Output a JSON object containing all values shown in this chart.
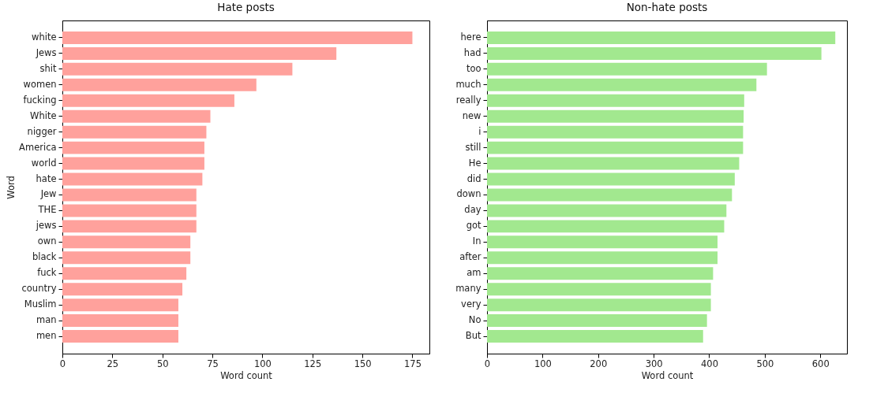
{
  "chart_data": [
    {
      "type": "bar",
      "orientation": "horizontal",
      "title": "Hate posts",
      "xlabel": "Word count",
      "ylabel": "Word",
      "categories": [
        "white",
        "Jews",
        "shit",
        "women",
        "fucking",
        "White",
        "nigger",
        "America",
        "world",
        "hate",
        "Jew",
        "THE",
        "jews",
        "own",
        "black",
        "fuck",
        "country",
        "Muslim",
        "man",
        "men"
      ],
      "values": [
        175,
        137,
        115,
        97,
        86,
        74,
        72,
        71,
        71,
        70,
        67,
        67,
        67,
        64,
        64,
        62,
        60,
        58,
        58,
        58
      ],
      "color": "#ffa19c",
      "xlim": [
        0,
        183.5
      ],
      "xticks": [
        0,
        25,
        50,
        75,
        100,
        125,
        150,
        175
      ],
      "grid": false
    },
    {
      "type": "bar",
      "orientation": "horizontal",
      "title": "Non-hate posts",
      "xlabel": "Word count",
      "categories": [
        "here",
        "had",
        "too",
        "much",
        "really",
        "new",
        "i",
        "still",
        "He",
        "did",
        "down",
        "day",
        "got",
        "In",
        "after",
        "am",
        "many",
        "very",
        "No",
        "But"
      ],
      "values": [
        627,
        602,
        504,
        485,
        463,
        462,
        461,
        461,
        454,
        446,
        441,
        431,
        427,
        415,
        415,
        407,
        403,
        403,
        396,
        389
      ],
      "color": "#a2e88f",
      "xlim": [
        0,
        648
      ],
      "xticks": [
        0,
        100,
        200,
        300,
        400,
        500,
        600
      ],
      "grid": false
    }
  ]
}
